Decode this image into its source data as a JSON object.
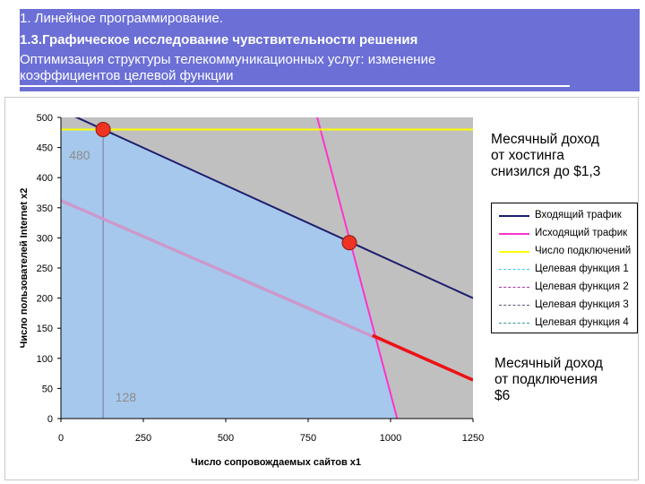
{
  "header": {
    "line1": "1. Линейное программирование.",
    "line2": "1.3.Графическое исследование чувствительности решения",
    "line3": "Оптимизация структуры телекоммуникационных услуг: изменение",
    "line4": "коэффициентов целевой функции"
  },
  "notes": {
    "top": "Месячный доход\nот хостинга\nснизился до $1,3",
    "bottom": "Месячный доход\nот подключения\n$6"
  },
  "colors": {
    "header_band": "#6b6fd6",
    "plot_background": "#c0c0c0",
    "feasible_region": "#a6c8ec",
    "incoming": "#1c1c6e",
    "outgoing": "#ff33cc",
    "connections": "#ffff00",
    "objective_old": "#cc99cc",
    "objective_new": "#ee1111",
    "marker": "#ee3322"
  },
  "chart_data": {
    "type": "line",
    "xlabel": "Число сопровождаемых сайтов x1",
    "ylabel": "Число пользователей Internet  x2",
    "xlim": [
      0,
      1250
    ],
    "ylim": [
      0,
      500
    ],
    "xticks": [
      "0",
      "250",
      "500",
      "750",
      "1000",
      "1250"
    ],
    "yticks": [
      "0",
      "50",
      "100",
      "150",
      "200",
      "250",
      "300",
      "350",
      "400",
      "450",
      "500"
    ],
    "grid": false,
    "legend_position": "right",
    "series": [
      {
        "name": "Входящий трафик",
        "color": "#1c1c6e",
        "dash": "solid",
        "x": [
          0,
          1250
        ],
        "y": [
          512,
          200
        ]
      },
      {
        "name": "Исходящий трафик",
        "color": "#ff33cc",
        "dash": "solid",
        "x": [
          775,
          1020
        ],
        "y": [
          505,
          0
        ]
      },
      {
        "name": "Число подключений",
        "color": "#ffff00",
        "dash": "solid",
        "x": [
          0,
          1250
        ],
        "y": [
          480,
          480
        ]
      },
      {
        "name": "Целевая функция 1",
        "color": "#33ccee",
        "dash": "dashed",
        "x": [],
        "y": []
      },
      {
        "name": "Целевая функция 2",
        "color": "#aa33aa",
        "dash": "dashed",
        "x": [],
        "y": []
      },
      {
        "name": "Целевая функция 3",
        "color": "#555577",
        "dash": "dashed",
        "x": [],
        "y": []
      },
      {
        "name": "Целевая функция 4",
        "color": "#339999",
        "dash": "dashed",
        "x": [],
        "y": []
      }
    ],
    "objective_line": {
      "x": [
        0,
        1250
      ],
      "y": [
        362,
        64
      ]
    },
    "objective_highlight": {
      "x": [
        945,
        1250
      ],
      "y": [
        138,
        64
      ]
    },
    "optimum_points": [
      {
        "x": 128,
        "y": 480
      },
      {
        "x": 875,
        "y": 292
      }
    ],
    "feasible_region": {
      "x": [
        0,
        0,
        128,
        875,
        1020
      ],
      "y": [
        0,
        480,
        480,
        292,
        0
      ]
    },
    "point_labels": [
      {
        "text": "480",
        "x": 25,
        "y": 430
      },
      {
        "text": "128",
        "x": 165,
        "y": 28
      }
    ],
    "reference_line": {
      "x": [
        128,
        128
      ],
      "y": [
        0,
        480
      ]
    }
  }
}
